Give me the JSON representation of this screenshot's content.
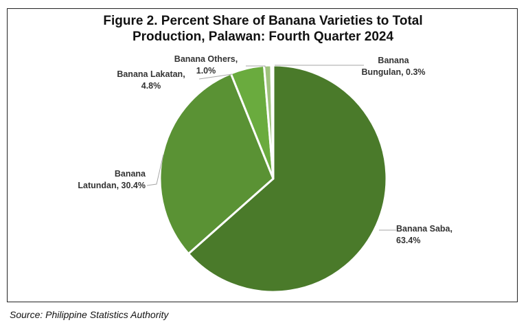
{
  "chart_data": {
    "type": "pie",
    "title_lines": [
      "Figure 2. Percent Share of Banana Varieties to Total",
      "Production, Palawan: Fourth Quarter 2024"
    ],
    "slices": [
      {
        "label_lines": [
          "Banana Saba,",
          "63.4%"
        ],
        "value": 63.4,
        "color": "#4a7a2a"
      },
      {
        "label_lines": [
          "Banana",
          "Latundan, 30.4%"
        ],
        "value": 30.4,
        "color": "#5a9234"
      },
      {
        "label_lines": [
          "Banana Lakatan,",
          "4.8%"
        ],
        "value": 4.8,
        "color": "#6aab3e"
      },
      {
        "label_lines": [
          "Banana Others,",
          "1.0%"
        ],
        "value": 1.0,
        "color": "#9fc27d"
      },
      {
        "label_lines": [
          "Banana",
          "Bungulan, 0.3%"
        ],
        "value": 0.3,
        "color": "#b9d3a0"
      }
    ]
  },
  "source": "Source: Philippine Statistics Authority"
}
